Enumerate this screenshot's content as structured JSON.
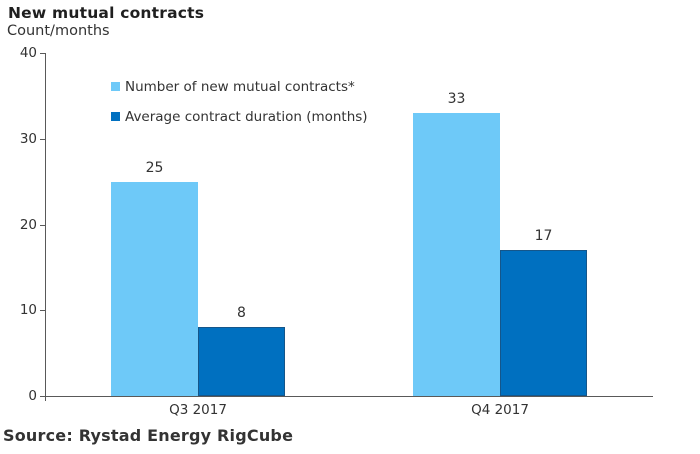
{
  "header": {
    "title": "New mutual contracts",
    "subtitle": "Count/months"
  },
  "source": "Source: Rystad Energy RigCube",
  "colors": {
    "series1_light_blue": "#6EC9F8",
    "series2_dark_blue": "#0070C0",
    "axis": "#595959",
    "text": "#333333"
  },
  "chart_data": {
    "type": "bar",
    "title": "New mutual contracts",
    "ylabel": "Count/months",
    "categories": [
      "Q3 2017",
      "Q4 2017"
    ],
    "series": [
      {
        "name": "Number of new mutual contracts*",
        "color": "#6EC9F8",
        "values": [
          25,
          33
        ]
      },
      {
        "name": "Average contract duration (months)",
        "color": "#0070C0",
        "values": [
          8,
          17
        ]
      }
    ],
    "ylim": [
      0,
      40
    ],
    "yticks": [
      0,
      10,
      20,
      30,
      40
    ],
    "grid": false,
    "legend_position": "top-left-inside",
    "bar_labels": true
  }
}
